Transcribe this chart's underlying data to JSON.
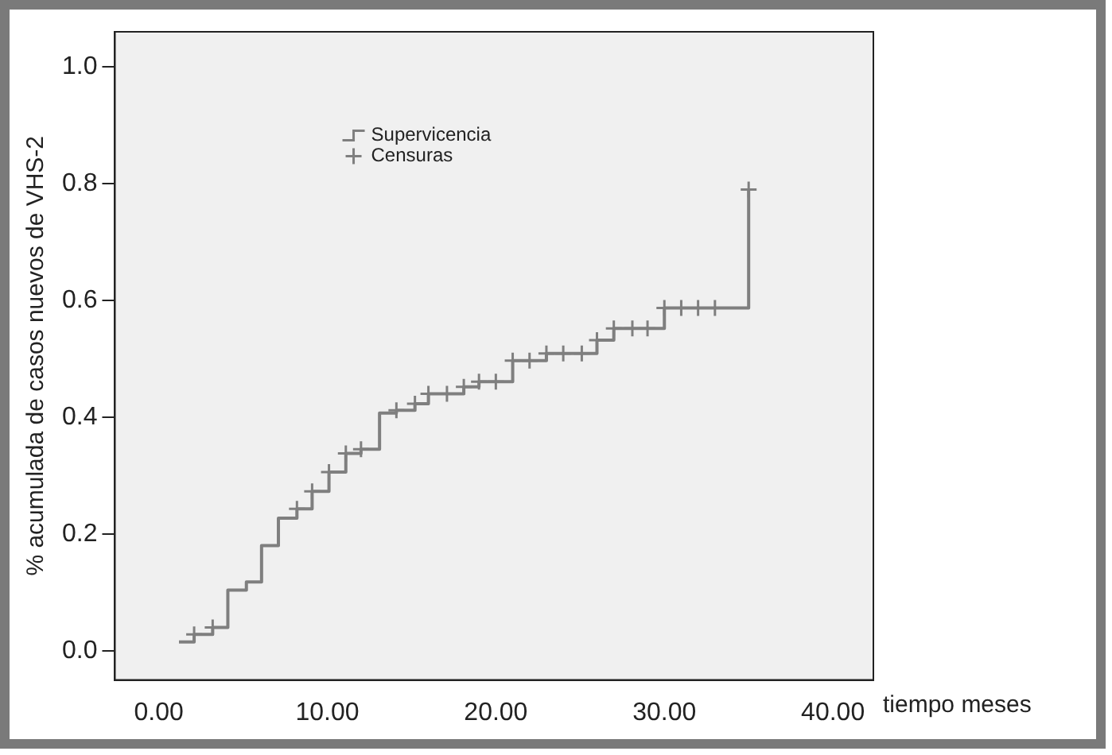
{
  "chart_data": {
    "type": "step",
    "xlabel": "tiempo meses",
    "ylabel": "% acumulada de casos nuevos de VHS-2",
    "xlim": [
      -2.6,
      42.4
    ],
    "xticks": [
      {
        "value": 0,
        "label": "0.00"
      },
      {
        "value": 10,
        "label": "10.00"
      },
      {
        "value": 20,
        "label": "20.00"
      },
      {
        "value": 30,
        "label": "30.00"
      },
      {
        "value": 40,
        "label": "40.00"
      }
    ],
    "ylim": [
      -0.05,
      1.06
    ],
    "yticks": [
      {
        "value": 0,
        "label": "0.0"
      },
      {
        "value": 0.2,
        "label": "0.2"
      },
      {
        "value": 0.4,
        "label": "0.4"
      },
      {
        "value": 0.6,
        "label": "0.6"
      },
      {
        "value": 0.8,
        "label": "0.8"
      },
      {
        "value": 1.0,
        "label": "1.0"
      }
    ],
    "grid": false,
    "legend": "top left",
    "series": [
      {
        "name": "Supervicencia",
        "type": "step",
        "color": "#7f7f7f",
        "marker": "none",
        "x": [
          1.2,
          2.1,
          3.2,
          4.1,
          5.2,
          6.1,
          7.1,
          8.2,
          9.1,
          10.1,
          11.1,
          12.0,
          13.1,
          14.1,
          15.2,
          16.0,
          18.1,
          19.0,
          21.0,
          23.0,
          26.0,
          27.0,
          30.0,
          35.0
        ],
        "values": [
          0.015,
          0.028,
          0.04,
          0.104,
          0.118,
          0.18,
          0.227,
          0.243,
          0.273,
          0.306,
          0.338,
          0.345,
          0.407,
          0.412,
          0.423,
          0.44,
          0.452,
          0.461,
          0.497,
          0.509,
          0.532,
          0.552,
          0.587,
          0.79
        ]
      },
      {
        "name": "Censuras",
        "type": "scatter",
        "color": "#7f7f7f",
        "marker": "cross",
        "x": [
          2.1,
          3.2,
          8.2,
          9.1,
          10.1,
          11.1,
          12.0,
          14.1,
          15.2,
          16.0,
          17.1,
          18.1,
          19.0,
          20.0,
          21.0,
          22.0,
          23.0,
          24.0,
          25.1,
          26.0,
          27.0,
          28.1,
          29.0,
          30.0,
          31.0,
          32.0,
          33.0,
          35.0
        ],
        "values": [
          0.028,
          0.04,
          0.243,
          0.273,
          0.306,
          0.338,
          0.345,
          0.412,
          0.423,
          0.44,
          0.44,
          0.452,
          0.461,
          0.461,
          0.497,
          0.497,
          0.509,
          0.509,
          0.509,
          0.532,
          0.552,
          0.552,
          0.552,
          0.587,
          0.587,
          0.587,
          0.587,
          0.79
        ]
      }
    ]
  }
}
